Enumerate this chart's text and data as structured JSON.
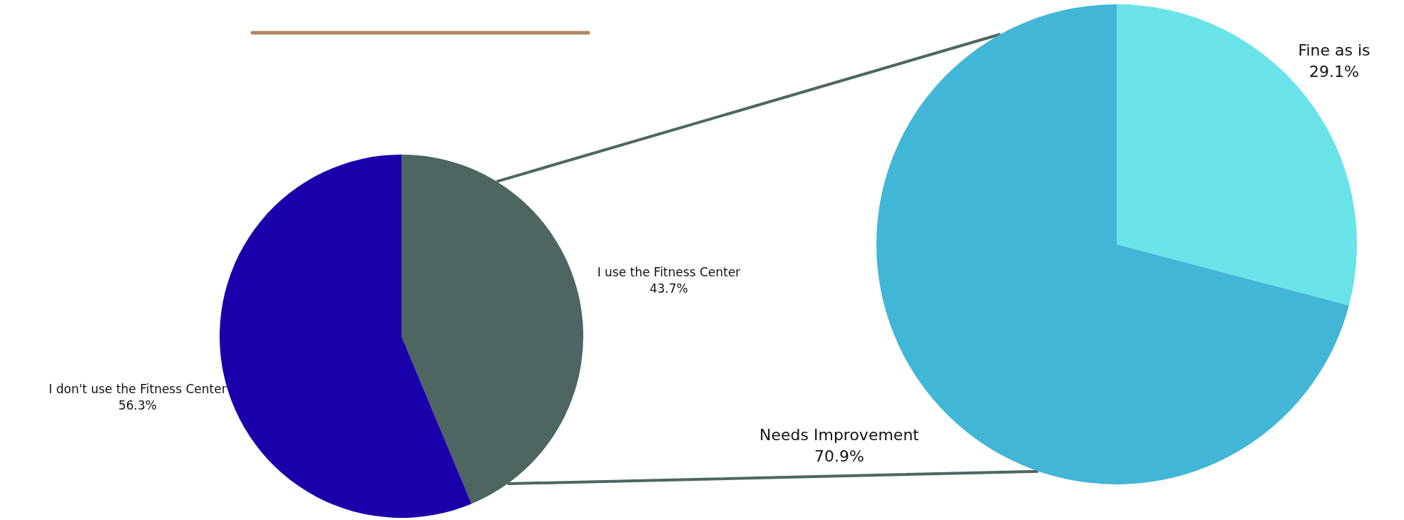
{
  "chart_data": [
    {
      "type": "pie",
      "categories": [
        "I use the Fitness Center",
        "I don't use the Fitness Center"
      ],
      "values": [
        43.7,
        56.3
      ],
      "colors": [
        "#4d6661",
        "#1a00ab"
      ],
      "value_labels": [
        "43.7%",
        "56.3%"
      ]
    },
    {
      "type": "pie",
      "categories": [
        "Fine as is",
        "Needs Improvement"
      ],
      "values": [
        29.1,
        70.9
      ],
      "colors": [
        "#6ae3e9",
        "#42b6d6"
      ],
      "value_labels": [
        "29.1%",
        "70.9%"
      ]
    }
  ]
}
